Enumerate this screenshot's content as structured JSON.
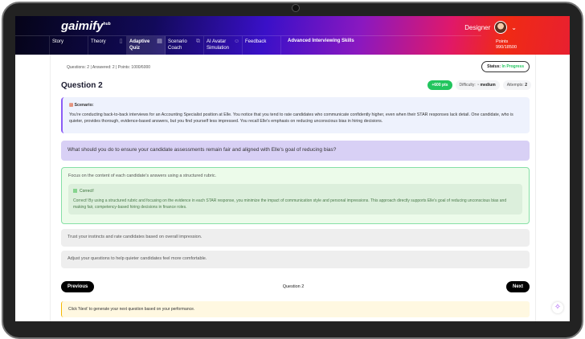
{
  "header": {
    "logo": "gaimify",
    "logo_sup": "hub",
    "user": "Designer",
    "points_label": "Points",
    "points_value": "990/18500"
  },
  "nav": {
    "items": [
      {
        "label": "Story"
      },
      {
        "label": "Theory"
      },
      {
        "label": "Adaptive Quiz",
        "active": true
      },
      {
        "label": "Scenario Coach"
      },
      {
        "label": "AI Avatar Simulation"
      },
      {
        "label": "Feedback"
      }
    ],
    "course_title": "Advanced Interviewing Skills"
  },
  "quiz": {
    "meta": "Questions: 2 | Answered: 2 | Points: 1000/6000",
    "status_label": "Status:",
    "status_value": "In Progress",
    "question_title": "Question 2",
    "points_chip": "+600 pts",
    "difficulty_label": "Difficulty:",
    "difficulty_value": "medium",
    "attempts_label": "Attempts:",
    "attempts_value": "2",
    "scenario_heading": "Scenario:",
    "scenario_text": "You're conducting back-to-back interviews for an Accounting Specialist position at Elle. You notice that you tend to rate candidates who communicate confidently higher, even when their STAR responses lack detail. One candidate, who is quieter, provides thorough, evidence-based answers, but you find yourself less impressed. You recall Elle's emphasis on reducing unconscious bias in hiring decisions.",
    "question": "What should you do to ensure your candidate assessments remain fair and aligned with Elle's goal of reducing bias?",
    "options": [
      "Focus on the content of each candidate's answers using a structured rubric.",
      "Trust your instincts and rate candidates based on overall impression.",
      "Adjust your questions to help quieter candidates feel more comfortable."
    ],
    "feedback_heading": "Correct!",
    "feedback_text": "Correct! By using a structured rubric and focusing on the evidence in each STAR response, you minimize the impact of communication style and personal impressions. This approach directly supports Elle's goal of reducing unconscious bias and making fair, competency-based hiring decisions in finance roles.",
    "prev": "Previous",
    "next": "Next",
    "position": "Question 2",
    "note": "Click 'Next' to generate your next question based on your performance."
  },
  "colors": {
    "accent": "#22c55e",
    "question_bg": "#d8d0f5",
    "scenario_border": "#8b5cf6"
  }
}
